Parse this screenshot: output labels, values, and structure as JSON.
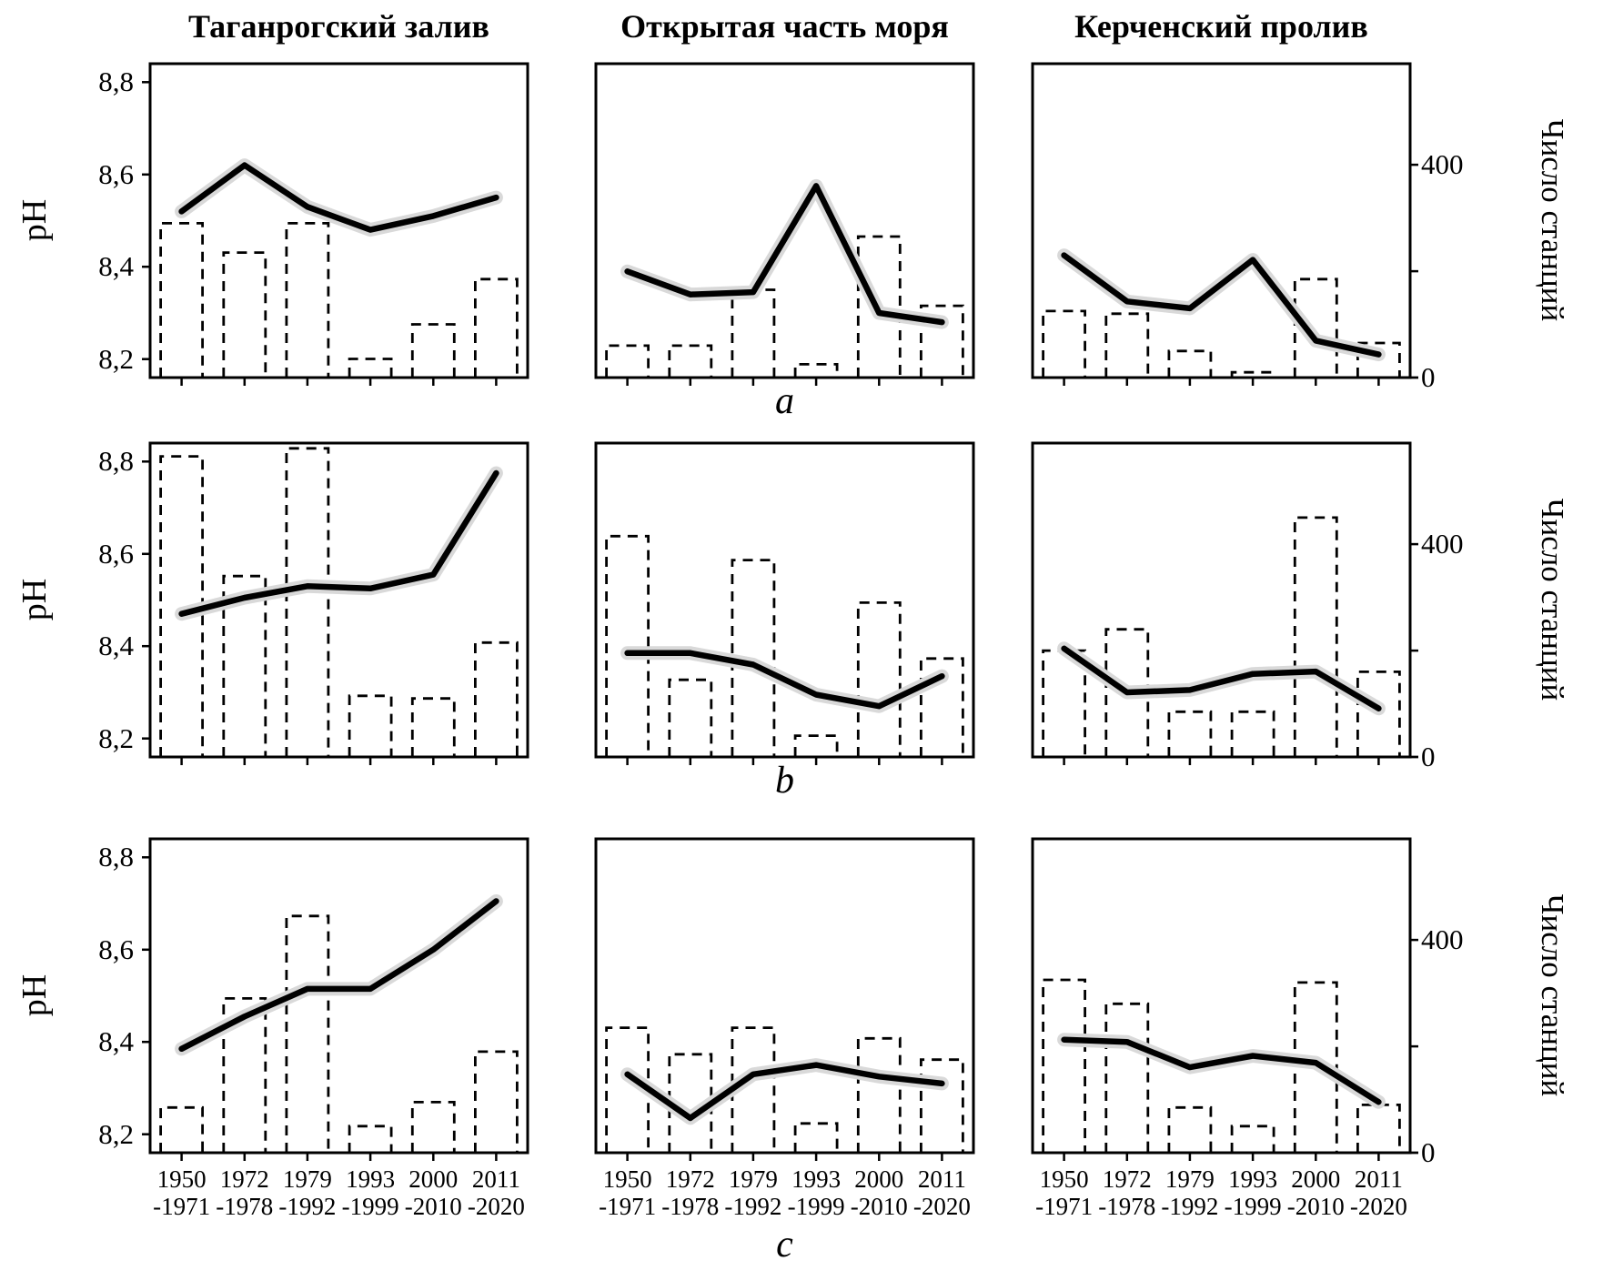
{
  "figure": {
    "column_titles": [
      "Таганрогский залив",
      "Открытая часть моря",
      "Керченский пролив"
    ],
    "row_labels": [
      "a",
      "b",
      "c"
    ],
    "left_axis_label": "pH",
    "right_axis_label": "Число станций"
  },
  "chart_data": {
    "type": "combo-line-bar",
    "categories": [
      "1950-1971",
      "1972-1978",
      "1979-1992",
      "1993-1999",
      "2000-2010",
      "2011-2020"
    ],
    "x_tick_labels": [
      [
        "1950",
        "-1971"
      ],
      [
        "1972",
        "-1978"
      ],
      [
        "1979",
        "-1992"
      ],
      [
        "1993",
        "-1999"
      ],
      [
        "2000",
        "-2010"
      ],
      [
        "2011",
        "-2020"
      ]
    ],
    "left_axis": {
      "label": "pH",
      "range": [
        8.16,
        8.84
      ],
      "ticks": [
        8.8,
        8.6,
        8.4,
        8.2
      ],
      "tick_labels": [
        "8,8",
        "8,6",
        "8,4",
        "8,2"
      ]
    },
    "right_axis": {
      "label": "Число станций",
      "range": [
        0,
        590
      ],
      "ticks": [
        400,
        0
      ],
      "tick_labels": [
        "400",
        "0"
      ],
      "minor_ticks": [
        200
      ]
    },
    "series_info": {
      "solid_line": "pH",
      "dashed_bars": "Число станций"
    },
    "colors": {
      "line": "#000000",
      "band": "#d9d9d9",
      "bar": "#000000"
    },
    "rows": [
      {
        "label": "a",
        "panels": [
          {
            "region": "Таганрогский залив",
            "ph": [
              8.52,
              8.62,
              8.53,
              8.48,
              8.51,
              8.55
            ],
            "stations": [
              290,
              235,
              290,
              35,
              100,
              185
            ]
          },
          {
            "region": "Открытая часть моря",
            "ph": [
              8.39,
              8.34,
              8.345,
              8.575,
              8.3,
              8.28
            ],
            "stations": [
              60,
              60,
              165,
              25,
              265,
              135
            ]
          },
          {
            "region": "Керченский пролив",
            "ph": [
              8.425,
              8.325,
              8.31,
              8.415,
              8.24,
              8.21
            ],
            "stations": [
              125,
              120,
              50,
              10,
              185,
              65
            ]
          }
        ]
      },
      {
        "label": "b",
        "panels": [
          {
            "region": "Таганрогский залив",
            "ph": [
              8.47,
              8.505,
              8.53,
              8.525,
              8.555,
              8.775
            ],
            "stations": [
              565,
              340,
              580,
              115,
              110,
              215
            ]
          },
          {
            "region": "Открытая часть моря",
            "ph": [
              8.385,
              8.385,
              8.36,
              8.295,
              8.27,
              8.335
            ],
            "stations": [
              415,
              145,
              370,
              40,
              290,
              185
            ]
          },
          {
            "region": "Керченский пролив",
            "ph": [
              8.395,
              8.3,
              8.305,
              8.34,
              8.345,
              8.265
            ],
            "stations": [
              200,
              240,
              85,
              85,
              450,
              160
            ]
          }
        ]
      },
      {
        "label": "c",
        "panels": [
          {
            "region": "Таганрогский залив",
            "ph": [
              8.385,
              8.455,
              8.515,
              8.515,
              8.6,
              8.705
            ],
            "stations": [
              85,
              290,
              445,
              50,
              95,
              190
            ]
          },
          {
            "region": "Открытая часть моря",
            "ph": [
              8.33,
              8.235,
              8.33,
              8.35,
              8.325,
              8.31
            ],
            "stations": [
              235,
              185,
              235,
              55,
              215,
              175
            ]
          },
          {
            "region": "Керченский пролив",
            "ph": [
              8.405,
              8.4,
              8.345,
              8.37,
              8.355,
              8.27
            ],
            "stations": [
              325,
              280,
              85,
              50,
              320,
              90
            ]
          }
        ]
      }
    ]
  }
}
